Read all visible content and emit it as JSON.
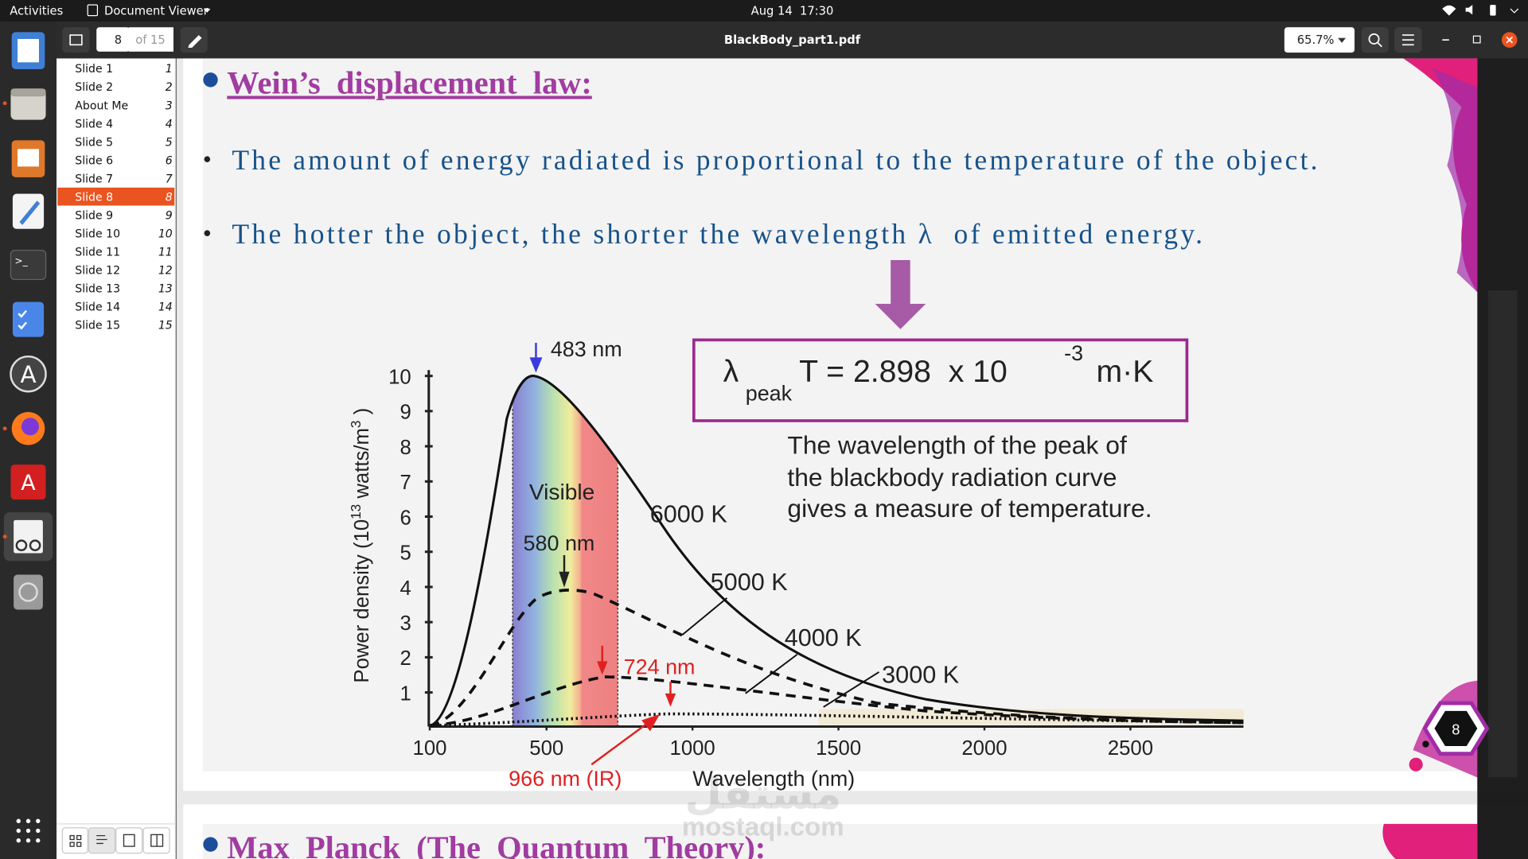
{
  "topbar": {
    "activities": "Activities",
    "app": "Document Viewer",
    "clock": "Aug 14  17:30"
  },
  "toolbar": {
    "page": "8",
    "page_count": "of 15",
    "file": "BlackBody_part1.pdf",
    "zoom": "65.7%"
  },
  "sidebar": {
    "items": [
      {
        "label": "Slide 1",
        "page": "1"
      },
      {
        "label": "Slide 2",
        "page": "2"
      },
      {
        "label": "About Me",
        "page": "3"
      },
      {
        "label": "Slide 4",
        "page": "4"
      },
      {
        "label": "Slide 5",
        "page": "5"
      },
      {
        "label": "Slide 6",
        "page": "6"
      },
      {
        "label": "Slide 7",
        "page": "7"
      },
      {
        "label": "Slide 8",
        "page": "8"
      },
      {
        "label": "Slide 9",
        "page": "9"
      },
      {
        "label": "Slide 10",
        "page": "10"
      },
      {
        "label": "Slide 11",
        "page": "11"
      },
      {
        "label": "Slide 12",
        "page": "12"
      },
      {
        "label": "Slide 13",
        "page": "13"
      },
      {
        "label": "Slide 14",
        "page": "14"
      },
      {
        "label": "Slide 15",
        "page": "15"
      }
    ],
    "selected": 7
  },
  "slide": {
    "title": "Wein’s  displacement  law:",
    "bullets": [
      "The amount of energy radiated is proportional to the temperature of the object.",
      "The hotter the object, the shorter the wavelength λ  of emitted energy."
    ],
    "figure": {
      "formula": {
        "lambda": "λ",
        "sub": "peak",
        "main": "T = 2.898  x 10",
        "exp": "-3",
        "unit": "m·K"
      },
      "description": [
        "The wavelength of the peak of",
        "the blackbody radiation curve",
        "gives a measure of temperature."
      ],
      "ylabel": {
        "text": "Power density (10",
        "exp": "13",
        "unit": " watts/m",
        "unit_exp": "3",
        "close": " )"
      },
      "xlabel": "Wavelength (nm)",
      "yticks": [
        1,
        2,
        3,
        4,
        5,
        6,
        7,
        8,
        9,
        10
      ],
      "xticks": [
        100,
        500,
        1000,
        1500,
        2000,
        2500
      ],
      "curve_labels": [
        "6000 K",
        "5000 K",
        "4000 K",
        "3000 K"
      ],
      "peaks": [
        "483 nm",
        "580 nm",
        "724 nm",
        "966 nm (IR)"
      ],
      "band_label": "Visible"
    },
    "page_badge": "8"
  },
  "next_slide": {
    "title": "Max  Planck  (The  Quantum  Theory):"
  },
  "watermark": {
    "arabic": "مستقل",
    "latin": "mostaql.com"
  }
}
